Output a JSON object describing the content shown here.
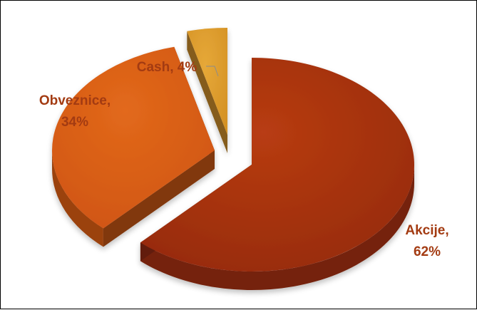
{
  "chart_data": {
    "type": "pie",
    "title": "",
    "categories": [
      "Akcije",
      "Obveznice",
      "Cash"
    ],
    "values": [
      62,
      34,
      4
    ],
    "colors": {
      "Akcije": "#a3300e",
      "Obveznice": "#d75b14",
      "Cash": "#dd9a2b"
    },
    "labels": {
      "akcije": {
        "name": "Akcije,",
        "pct": "62%"
      },
      "obveznice": {
        "name": "Obveznice,",
        "pct": "34%"
      },
      "cash": {
        "text": "Cash, 4%"
      }
    },
    "label_color": "#a33b12",
    "style": "3d-exploded",
    "legend": "none"
  }
}
